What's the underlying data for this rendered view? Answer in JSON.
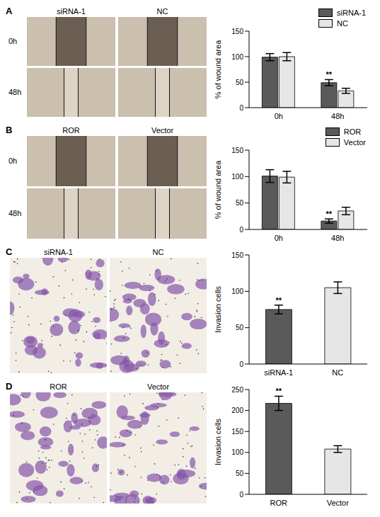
{
  "chart_data": [
    {
      "type": "bar",
      "annotations": {
        "panel": "A",
        "image_columns": [
          "siRNA-1",
          "NC"
        ],
        "image_rows": [
          "0h",
          "48h"
        ],
        "significance": [
          {
            "text": "**",
            "category": "48h",
            "series": "siRNA-1"
          }
        ]
      },
      "ylabel": "% of wound area",
      "categories": [
        "0h",
        "48h"
      ],
      "series": [
        {
          "name": "siRNA-1",
          "color": "#5a5a5a",
          "values": [
            99,
            49
          ],
          "errors": [
            7,
            6
          ]
        },
        {
          "name": "NC",
          "color": "#e6e6e6",
          "values": [
            100,
            33
          ],
          "errors": [
            8,
            5
          ]
        }
      ],
      "ylim": [
        0,
        150
      ],
      "yticks": [
        0,
        50,
        100,
        150
      ],
      "legend": "upper right"
    },
    {
      "type": "bar",
      "annotations": {
        "panel": "B",
        "image_columns": [
          "ROR",
          "Vector"
        ],
        "image_rows": [
          "0h",
          "48h"
        ],
        "significance": [
          {
            "text": "**",
            "category": "48h",
            "series": "ROR"
          }
        ]
      },
      "ylabel": "% of wound area",
      "categories": [
        "0h",
        "48h"
      ],
      "series": [
        {
          "name": "ROR",
          "color": "#5a5a5a",
          "values": [
            101,
            16
          ],
          "errors": [
            12,
            4
          ]
        },
        {
          "name": "Vector",
          "color": "#e6e6e6",
          "values": [
            99,
            35
          ],
          "errors": [
            11,
            7
          ]
        }
      ],
      "ylim": [
        0,
        150
      ],
      "yticks": [
        0,
        50,
        100,
        150
      ],
      "legend": "upper right"
    },
    {
      "type": "bar",
      "annotations": {
        "panel": "C",
        "image_columns": [
          "siRNA-1",
          "NC"
        ],
        "significance": [
          {
            "text": "**",
            "category": "siRNA-1"
          }
        ]
      },
      "ylabel": "Invasion cells",
      "categories": [
        "siRNA-1",
        "NC"
      ],
      "values": [
        75,
        105
      ],
      "errors": [
        6,
        8
      ],
      "colors": [
        "#5a5a5a",
        "#e6e6e6"
      ],
      "ylim": [
        0,
        150
      ],
      "yticks": [
        0,
        50,
        100,
        150
      ]
    },
    {
      "type": "bar",
      "annotations": {
        "panel": "D",
        "image_columns": [
          "ROR",
          "Vector"
        ],
        "significance": [
          {
            "text": "**",
            "category": "ROR"
          }
        ]
      },
      "ylabel": "Invasion cells",
      "categories": [
        "ROR",
        "Vector"
      ],
      "values": [
        217,
        108
      ],
      "errors": [
        17,
        8
      ],
      "colors": [
        "#5a5a5a",
        "#e6e6e6"
      ],
      "ylim": [
        0,
        250
      ],
      "yticks": [
        0,
        50,
        100,
        150,
        200,
        250
      ]
    }
  ]
}
